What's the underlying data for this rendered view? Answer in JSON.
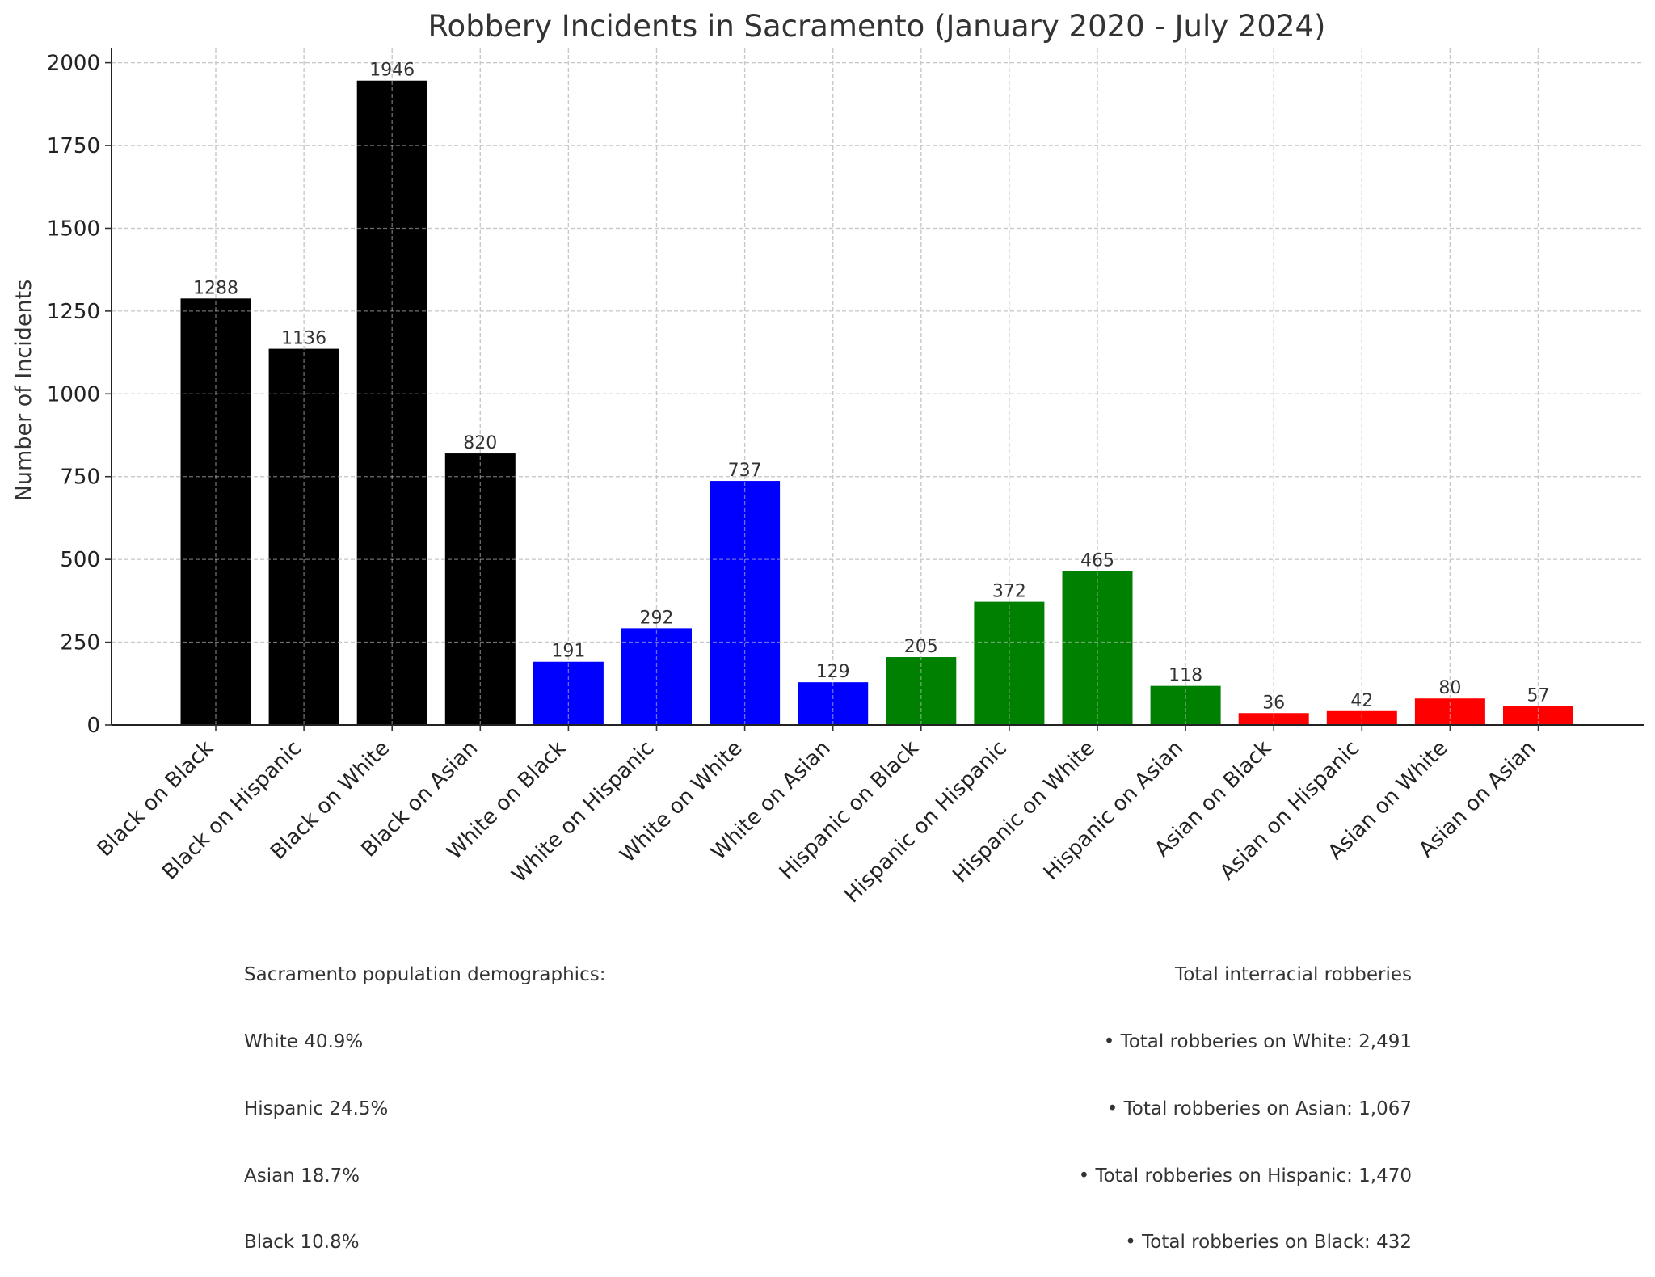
{
  "chart_data": {
    "type": "bar",
    "title": "Robbery Incidents in Sacramento (January 2020 - July 2024)",
    "xlabel": "",
    "ylabel": "Number of Incidents",
    "categories": [
      "Black on Black",
      "Black on Hispanic",
      "Black on White",
      "Black on Asian",
      "White on Black",
      "White on Hispanic",
      "White on White",
      "White on Asian",
      "Hispanic on Black",
      "Hispanic on Hispanic",
      "Hispanic on White",
      "Hispanic on Asian",
      "Asian on Black",
      "Asian on Hispanic",
      "Asian on White",
      "Asian on Asian"
    ],
    "values": [
      1288,
      1136,
      1946,
      820,
      191,
      292,
      737,
      129,
      205,
      372,
      465,
      118,
      36,
      42,
      80,
      57
    ],
    "bar_colors": [
      "#000000",
      "#000000",
      "#000000",
      "#000000",
      "#0000ff",
      "#0000ff",
      "#0000ff",
      "#0000ff",
      "#008000",
      "#008000",
      "#008000",
      "#008000",
      "#ff0000",
      "#ff0000",
      "#ff0000",
      "#ff0000"
    ],
    "data_labels": [
      "1288",
      "1136",
      "1946",
      "820",
      "191",
      "292",
      "737",
      "129",
      "205",
      "372",
      "465",
      "118",
      "36",
      "42",
      "80",
      "57"
    ],
    "yticks": [
      0,
      250,
      500,
      750,
      1000,
      1250,
      1500,
      1750,
      2000
    ],
    "ytick_labels": [
      "0",
      "250",
      "500",
      "750",
      "1000",
      "1250",
      "1500",
      "1750",
      "2000"
    ],
    "ylim": [
      0,
      2043
    ],
    "grid": true,
    "grid_style": "dashed"
  },
  "annotations": {
    "demographics": {
      "heading": "Sacramento population demographics:",
      "lines": [
        "White 40.9%",
        "Hispanic 24.5%",
        "Asian 18.7%",
        "Black 10.8%"
      ]
    },
    "totals": {
      "heading": "Total interracial robberies",
      "lines": [
        "• Total robberies on White: 2,491",
        "• Total robberies on Asian: 1,067",
        "• Total robberies on Hispanic: 1,470",
        "• Total robberies on Black: 432"
      ]
    }
  }
}
